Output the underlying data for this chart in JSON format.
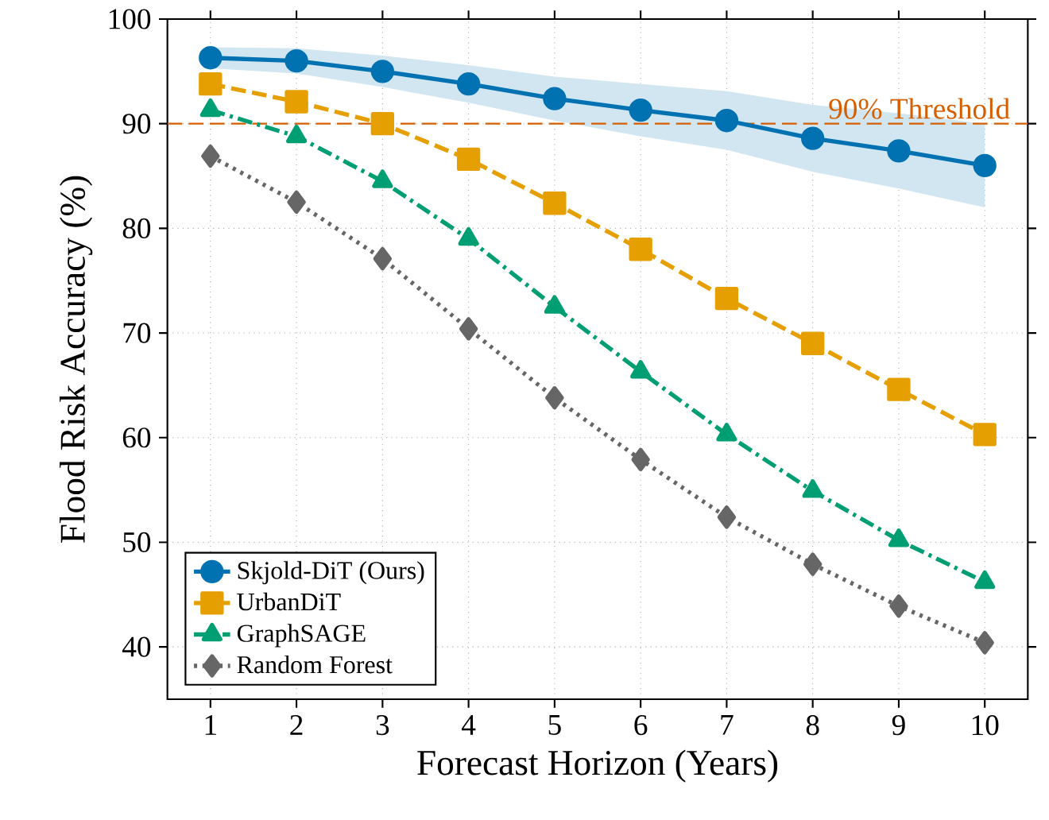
{
  "chart_data": {
    "type": "line",
    "xlabel": "Forecast Horizon (Years)",
    "ylabel": "Flood Risk Accuracy (%)",
    "x": [
      1,
      2,
      3,
      4,
      5,
      6,
      7,
      8,
      9,
      10
    ],
    "xlim": [
      0.5,
      10.5
    ],
    "ylim": [
      35,
      100
    ],
    "xticks": [
      1,
      2,
      3,
      4,
      5,
      6,
      7,
      8,
      9,
      10
    ],
    "yticks": [
      40,
      50,
      60,
      70,
      80,
      90,
      100
    ],
    "grid": true,
    "legend": "bottom left",
    "series": [
      {
        "name": "Skjold-DiT (Ours)",
        "color": "#0072b2",
        "marker": "circle",
        "line_style": "solid",
        "values": [
          96.3,
          96.0,
          95.0,
          93.8,
          92.4,
          91.3,
          90.3,
          88.6,
          87.4,
          86.0
        ],
        "lower": [
          95.3,
          94.8,
          93.5,
          92.0,
          90.3,
          88.8,
          87.5,
          85.4,
          83.8,
          82.0
        ],
        "upper": [
          97.3,
          97.2,
          96.5,
          95.6,
          94.5,
          93.8,
          93.1,
          91.8,
          91.0,
          90.0
        ]
      },
      {
        "name": "UrbanDiT",
        "color": "#e69f00",
        "marker": "square",
        "line_style": "dashed",
        "values": [
          93.8,
          92.1,
          90.0,
          86.6,
          82.4,
          78.0,
          73.3,
          69.0,
          64.6,
          60.3
        ]
      },
      {
        "name": "GraphSAGE",
        "color": "#009e73",
        "marker": "triangle",
        "line_style": "dashdot",
        "values": [
          91.3,
          88.8,
          84.5,
          79.0,
          72.5,
          66.3,
          60.3,
          54.9,
          50.2,
          46.2
        ]
      },
      {
        "name": "Random Forest",
        "color": "#666666",
        "marker": "diamond",
        "line_style": "dotted",
        "values": [
          86.9,
          82.5,
          77.1,
          70.4,
          63.8,
          57.9,
          52.4,
          47.9,
          43.9,
          40.4
        ]
      }
    ],
    "ref_lines": [
      {
        "axis": "y",
        "value": 90,
        "label": "90% Threshold",
        "color": "#d55e00",
        "line_style": "dashed"
      }
    ]
  }
}
